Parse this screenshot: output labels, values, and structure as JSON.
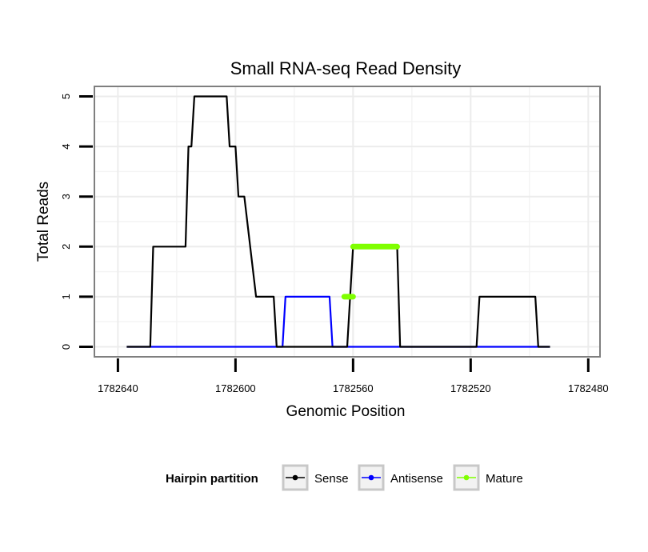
{
  "chart_data": {
    "type": "line",
    "title": "Small RNA-seq Read Density",
    "xlabel": "Genomic Position",
    "ylabel": "Total Reads",
    "x_reversed": true,
    "xlim": [
      1782648,
      1782476
    ],
    "ylim": [
      -0.2,
      5.2
    ],
    "x_ticks": [
      1782640,
      1782600,
      1782560,
      1782520,
      1782480
    ],
    "y_ticks": [
      0,
      1,
      2,
      3,
      4,
      5
    ],
    "grid": true,
    "legend": {
      "title": "Hairpin partition",
      "position": "bottom",
      "entries": [
        "Sense",
        "Antisense",
        "Mature"
      ]
    },
    "series": [
      {
        "name": "Sense",
        "color": "#000000",
        "x": [
          1782637,
          1782629,
          1782628,
          1782617,
          1782616,
          1782615,
          1782614,
          1782613,
          1782611,
          1782603,
          1782602,
          1782600,
          1782599,
          1782597,
          1782593,
          1782587,
          1782586,
          1782583,
          1782562,
          1782561,
          1782560,
          1782545,
          1782544,
          1782518,
          1782517,
          1782498,
          1782497,
          1782493
        ],
        "y": [
          0,
          0,
          2,
          2,
          4,
          4,
          5,
          5,
          5,
          5,
          4,
          4,
          3,
          3,
          1,
          1,
          0,
          0,
          0,
          1,
          2,
          2,
          0,
          0,
          1,
          1,
          0,
          0
        ]
      },
      {
        "name": "Antisense",
        "color": "#0000ff",
        "x": [
          1782637,
          1782584,
          1782583,
          1782568,
          1782567,
          1782493
        ],
        "y": [
          0,
          0,
          1,
          1,
          0,
          0
        ]
      },
      {
        "name": "Mature",
        "color": "#7fff00",
        "segments": [
          {
            "x": [
              1782563,
              1782560
            ],
            "y": [
              1,
              1
            ]
          },
          {
            "x": [
              1782560,
              1782545
            ],
            "y": [
              2,
              2
            ]
          }
        ]
      }
    ]
  }
}
